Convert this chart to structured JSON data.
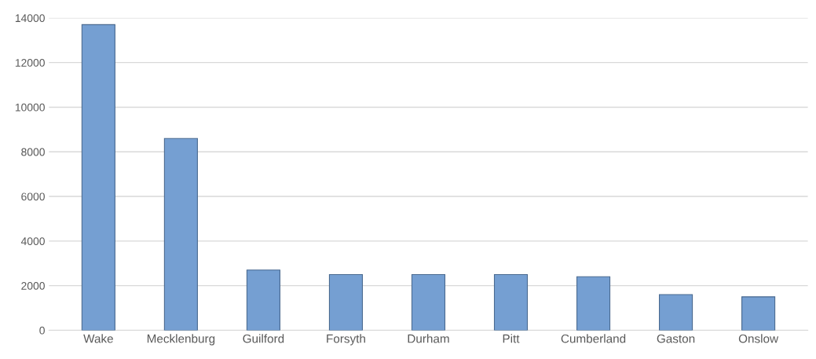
{
  "chart_data": {
    "type": "bar",
    "categories": [
      "Wake",
      "Mecklenburg",
      "Guilford",
      "Forsyth",
      "Durham",
      "Pitt",
      "Cumberland",
      "Gaston",
      "Onslow"
    ],
    "values": [
      13700,
      8600,
      2700,
      2500,
      2500,
      2500,
      2400,
      1600,
      1500
    ],
    "color": "#759fd2",
    "ylim": [
      0,
      14000
    ],
    "yticks": [
      0,
      2000,
      4000,
      6000,
      8000,
      10000,
      12000,
      14000
    ],
    "grid": "y"
  }
}
